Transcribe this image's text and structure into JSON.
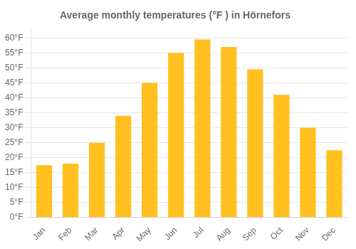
{
  "chart_data": {
    "type": "bar",
    "title": "Average monthly temperatures (°F ) in Hörnefors",
    "categories": [
      "Jan",
      "Feb",
      "Mar",
      "Apr",
      "May",
      "Jun",
      "Jul",
      "Aug",
      "Sep",
      "Oct",
      "Nov",
      "Dec"
    ],
    "values": [
      17.5,
      18.0,
      25.0,
      34.0,
      45.0,
      55.0,
      59.5,
      57.0,
      49.5,
      41.0,
      30.0,
      22.5
    ],
    "color": "#FFC020",
    "ylim": [
      0,
      63
    ],
    "yticks": [
      {
        "value": 0,
        "label": "0°F"
      },
      {
        "value": 5,
        "label": "5°F"
      },
      {
        "value": 10,
        "label": "10°F"
      },
      {
        "value": 15,
        "label": "15°F"
      },
      {
        "value": 20,
        "label": "20°F"
      },
      {
        "value": 25,
        "label": "25°F"
      },
      {
        "value": 30,
        "label": "30°F"
      },
      {
        "value": 35,
        "label": "35°F"
      },
      {
        "value": 40,
        "label": "40°F"
      },
      {
        "value": 45,
        "label": "45°F"
      },
      {
        "value": 50,
        "label": "50°F"
      },
      {
        "value": 55,
        "label": "55°F"
      },
      {
        "value": 60,
        "label": "60°F"
      }
    ],
    "grid": true
  }
}
